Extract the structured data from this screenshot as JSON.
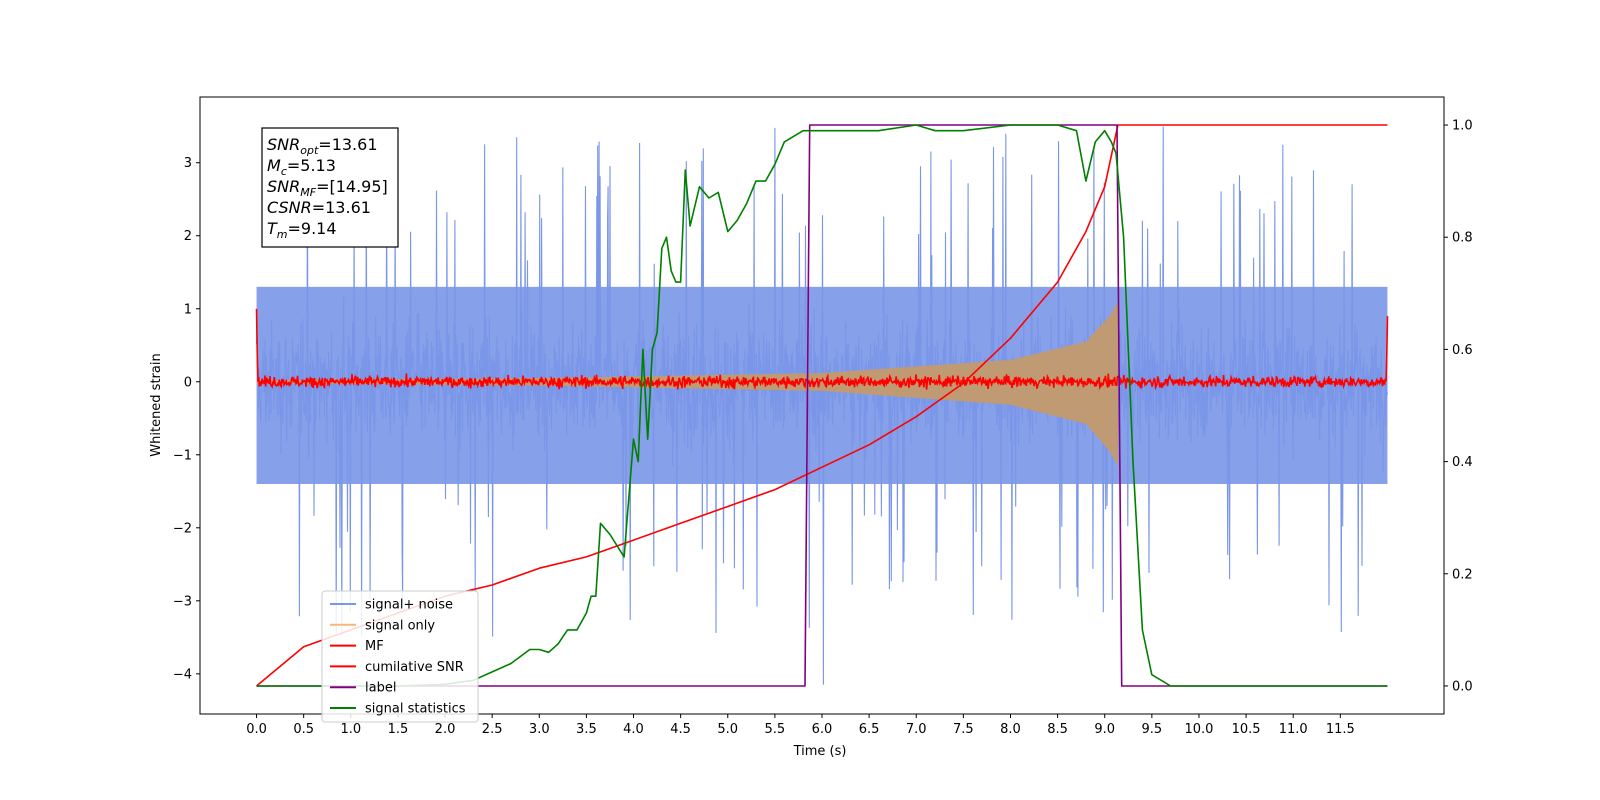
{
  "chart_data": {
    "type": "line",
    "title": "",
    "xlabel": "Time (s)",
    "ylabel": "Whitened strain",
    "ylabel_right": "",
    "xlim": [
      -0.6,
      12.6
    ],
    "ylim": [
      -4.55,
      3.9
    ],
    "ylim_right": [
      -0.05,
      1.05
    ],
    "x_ticks": [
      0.0,
      0.5,
      1.0,
      1.5,
      2.0,
      2.5,
      3.0,
      3.5,
      4.0,
      4.5,
      5.0,
      5.5,
      6.0,
      6.5,
      7.0,
      7.5,
      8.0,
      8.5,
      9.0,
      9.5,
      10.0,
      10.5,
      11.0,
      11.5
    ],
    "x_tick_labels": [
      "0.0",
      "0.5",
      "1.0",
      "1.5",
      "2.0",
      "2.5",
      "3.0",
      "3.5",
      "4.0",
      "4.5",
      "5.0",
      "5.5",
      "6.0",
      "6.5",
      "7.0",
      "7.5",
      "8.0",
      "8.5",
      "9.0",
      "9.5",
      "10.0",
      "10.5",
      "11.0",
      "11.5"
    ],
    "y_ticks": [
      -4,
      -3,
      -2,
      -1,
      0,
      1,
      2,
      3
    ],
    "y_tick_labels": [
      "−4",
      "−3",
      "−2",
      "−1",
      "0",
      "1",
      "2",
      "3"
    ],
    "y_ticks_right": [
      0.0,
      0.2,
      0.4,
      0.6,
      0.8,
      1.0
    ],
    "y_tick_labels_right": [
      "0.0",
      "0.2",
      "0.4",
      "0.6",
      "0.8",
      "1.0"
    ],
    "grid": false,
    "legend_position": "lower-left",
    "info_box": {
      "position": "top-left",
      "lines": [
        {
          "main": "SNR",
          "sub": "opt",
          "value": "=13.61"
        },
        {
          "main": "M",
          "sub": "c",
          "value": "=5.13"
        },
        {
          "main": "SNR",
          "sub": "MF",
          "value": "=[14.95]"
        },
        {
          "main": "CSNR",
          "sub": "",
          "value": "=13.61"
        },
        {
          "main": "T",
          "sub": "m",
          "value": "=9.14"
        }
      ]
    },
    "series": [
      {
        "name": "signal+ noise",
        "color": "#7a96e8",
        "axis": "left",
        "kind": "noise",
        "x_range": [
          0.0,
          12.0
        ],
        "center": 0.0,
        "band_low": [
          -1.5,
          -1.3
        ],
        "band_high": [
          1.2,
          1.4
        ],
        "spike_max": 3.6,
        "spike_min": -4.15
      },
      {
        "name": "signal only",
        "color": "#f5b87a",
        "axis": "left",
        "kind": "chirp",
        "x_range": [
          0.0,
          9.14
        ],
        "amplitude_points": [
          [
            0.0,
            0.02
          ],
          [
            3.0,
            0.05
          ],
          [
            6.0,
            0.12
          ],
          [
            8.0,
            0.3
          ],
          [
            8.8,
            0.55
          ],
          [
            9.05,
            0.9
          ],
          [
            9.14,
            1.1
          ]
        ]
      },
      {
        "name": "MF",
        "color": "#ff0000",
        "axis": "left",
        "kind": "noise",
        "x_range": [
          0.0,
          12.0
        ],
        "center": 0.0,
        "amplitude": 0.12,
        "edge_spikes": [
          [
            0.0,
            1.0
          ],
          [
            12.0,
            0.9
          ]
        ]
      },
      {
        "name": "cumilative SNR",
        "color": "#ff0000",
        "axis": "right",
        "x": [
          0.0,
          0.5,
          1.0,
          1.5,
          2.0,
          2.5,
          3.0,
          3.5,
          4.0,
          4.5,
          5.0,
          5.5,
          6.0,
          6.5,
          7.0,
          7.5,
          8.0,
          8.5,
          8.8,
          9.0,
          9.14,
          9.5,
          10.0,
          11.0,
          12.0
        ],
        "values": [
          0.0,
          0.07,
          0.1,
          0.13,
          0.16,
          0.18,
          0.21,
          0.23,
          0.26,
          0.29,
          0.32,
          0.35,
          0.39,
          0.43,
          0.48,
          0.54,
          0.62,
          0.72,
          0.81,
          0.89,
          1.0,
          1.0,
          1.0,
          1.0,
          1.0
        ]
      },
      {
        "name": "label",
        "color": "#800080",
        "axis": "right",
        "x": [
          0.0,
          5.82,
          5.87,
          9.13,
          9.18,
          12.0
        ],
        "values": [
          0.0,
          0.0,
          1.0,
          1.0,
          0.0,
          0.0
        ]
      },
      {
        "name": "signal statistics",
        "color": "#008000",
        "axis": "right",
        "x": [
          0.0,
          0.5,
          1.0,
          1.5,
          2.0,
          2.3,
          2.5,
          2.7,
          2.9,
          3.0,
          3.1,
          3.2,
          3.3,
          3.4,
          3.5,
          3.55,
          3.6,
          3.65,
          3.75,
          3.9,
          4.0,
          4.05,
          4.1,
          4.15,
          4.2,
          4.25,
          4.3,
          4.35,
          4.4,
          4.45,
          4.5,
          4.55,
          4.6,
          4.7,
          4.8,
          4.9,
          5.0,
          5.1,
          5.2,
          5.3,
          5.4,
          5.5,
          5.6,
          5.7,
          5.8,
          6.0,
          6.3,
          6.6,
          7.0,
          7.2,
          7.5,
          8.0,
          8.5,
          8.7,
          8.8,
          8.9,
          9.0,
          9.07,
          9.12,
          9.2,
          9.3,
          9.4,
          9.5,
          9.7,
          10.0,
          11.0,
          12.0
        ],
        "values": [
          0.0,
          0.0,
          0.0,
          0.0,
          0.003,
          0.01,
          0.025,
          0.04,
          0.065,
          0.065,
          0.06,
          0.075,
          0.1,
          0.1,
          0.13,
          0.16,
          0.16,
          0.29,
          0.27,
          0.23,
          0.44,
          0.4,
          0.6,
          0.44,
          0.6,
          0.63,
          0.78,
          0.8,
          0.74,
          0.72,
          0.72,
          0.92,
          0.82,
          0.89,
          0.87,
          0.88,
          0.81,
          0.83,
          0.86,
          0.9,
          0.9,
          0.93,
          0.97,
          0.98,
          0.99,
          0.99,
          0.99,
          0.99,
          1.0,
          0.99,
          0.99,
          1.0,
          1.0,
          0.99,
          0.9,
          0.97,
          0.99,
          0.97,
          0.95,
          0.8,
          0.4,
          0.1,
          0.02,
          0.0,
          0.0,
          0.0,
          0.0
        ]
      }
    ]
  }
}
